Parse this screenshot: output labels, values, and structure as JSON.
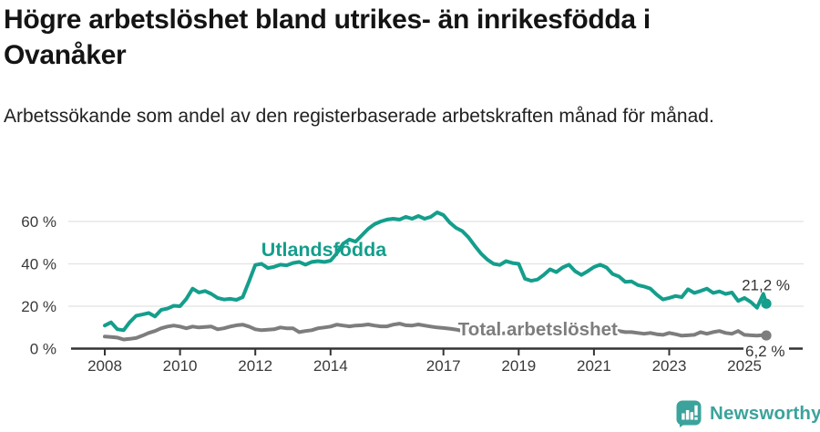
{
  "header": {
    "title": "Högre arbetslöshet bland utrikes- än inrikesfödda i Ovanåker",
    "subtitle": "Arbetssökande som andel av den registerbaserade arbetskraften månad för månad."
  },
  "chart_data": {
    "type": "line",
    "title": "Högre arbetslöshet bland utrikes- än inrikesfödda i Ovanåker",
    "subtitle": "Arbetssökande som andel av den registerbaserade arbetskraften månad för månad.",
    "xlabel": "",
    "ylabel": "",
    "grid": "horizontal",
    "x_axis": {
      "ticks": [
        2008,
        2010,
        2012,
        2014,
        2017,
        2019,
        2021,
        2023,
        2025
      ],
      "tick_labels": [
        "2008",
        "2010",
        "2012",
        "2014",
        "2017",
        "2019",
        "2021",
        "2023",
        "2025"
      ],
      "points_per_year": 6,
      "x_start": 2008,
      "end_x": 2025.58,
      "range": [
        2007.1,
        2026.6
      ]
    },
    "y_axis": {
      "ticks": [
        0,
        20,
        40,
        60
      ],
      "tick_labels": [
        "0 %",
        "20 %",
        "40 %",
        "60 %"
      ],
      "range": [
        0,
        68
      ]
    },
    "colors": {
      "grid": "#e2e2e2",
      "axis": "#333333"
    },
    "series": [
      {
        "id": "utlandsfodda",
        "name": "Utlandsfödda",
        "color": "#149e8c",
        "end_value": 21.2,
        "end_label": "21,2 %",
        "label": {
          "x": 2012.16,
          "y": 43.7
        },
        "values": [
          10.9,
          12.4,
          9.1,
          8.7,
          12.5,
          15.5,
          16.1,
          16.8,
          15.2,
          18.3,
          18.9,
          20.2,
          20.0,
          23.5,
          28.3,
          26.5,
          27.2,
          25.8,
          23.9,
          23.2,
          23.5,
          23.0,
          24.3,
          31.7,
          39.5,
          40.0,
          38.0,
          38.6,
          39.6,
          39.3,
          40.4,
          40.9,
          39.6,
          40.9,
          41.3,
          40.9,
          41.5,
          45.0,
          49.5,
          51.5,
          50.5,
          53.5,
          56.5,
          58.7,
          60.0,
          60.9,
          61.3,
          60.9,
          62.2,
          61.3,
          62.6,
          61.3,
          62.2,
          64.3,
          63.0,
          59.5,
          57.0,
          55.5,
          52.5,
          48.5,
          44.8,
          42.0,
          40.0,
          39.5,
          41.3,
          40.4,
          40.0,
          33.0,
          32.0,
          32.6,
          34.8,
          37.4,
          36.1,
          38.3,
          39.6,
          36.5,
          34.8,
          36.5,
          38.5,
          39.6,
          38.3,
          35.2,
          34.0,
          31.5,
          31.7,
          30.0,
          29.3,
          28.3,
          25.5,
          23.2,
          23.9,
          24.8,
          24.3,
          28.0,
          26.3,
          27.2,
          28.3,
          26.3,
          27.0,
          25.8,
          26.5,
          22.5,
          23.9,
          22.0,
          19.3,
          25.8,
          21.2
        ]
      },
      {
        "id": "total",
        "name": "Total arbetslöshet",
        "color": "#7d7d7d",
        "end_value": 6.2,
        "end_label": "6,2 %",
        "label": {
          "x": 2017.39,
          "y": 6.2
        },
        "values": [
          5.7,
          5.5,
          5.2,
          4.3,
          4.6,
          5.0,
          6.1,
          7.4,
          8.3,
          9.6,
          10.4,
          10.9,
          10.4,
          9.6,
          10.4,
          10.0,
          10.2,
          10.4,
          9.1,
          9.6,
          10.4,
          11.0,
          11.3,
          10.4,
          9.1,
          8.7,
          8.9,
          9.1,
          10.0,
          9.6,
          9.6,
          7.8,
          8.3,
          8.7,
          9.6,
          10.0,
          10.4,
          11.3,
          10.9,
          10.5,
          10.9,
          11.0,
          11.4,
          10.9,
          10.5,
          10.5,
          11.3,
          11.8,
          11.0,
          10.9,
          11.4,
          10.9,
          10.4,
          10.0,
          9.7,
          9.4,
          9.0,
          8.4,
          8.0,
          8.2,
          7.8,
          7.5,
          7.3,
          7.0,
          7.4,
          7.6,
          7.3,
          7.0,
          6.8,
          7.0,
          7.4,
          7.8,
          8.3,
          9.1,
          9.6,
          9.4,
          9.1,
          8.9,
          9.1,
          9.6,
          9.3,
          8.7,
          8.3,
          7.8,
          7.8,
          7.4,
          7.0,
          7.4,
          6.8,
          6.5,
          7.4,
          6.8,
          6.1,
          6.3,
          6.5,
          7.8,
          7.0,
          7.8,
          8.3,
          7.4,
          7.0,
          8.3,
          6.5,
          6.3,
          6.1,
          6.4,
          6.2
        ]
      }
    ],
    "legend_position": "inline-labels"
  },
  "footer": {
    "brand": "Newsworthy",
    "brand_color": "#3ba39c",
    "logo_icon": "bar-chart-speech-bubble-icon"
  }
}
